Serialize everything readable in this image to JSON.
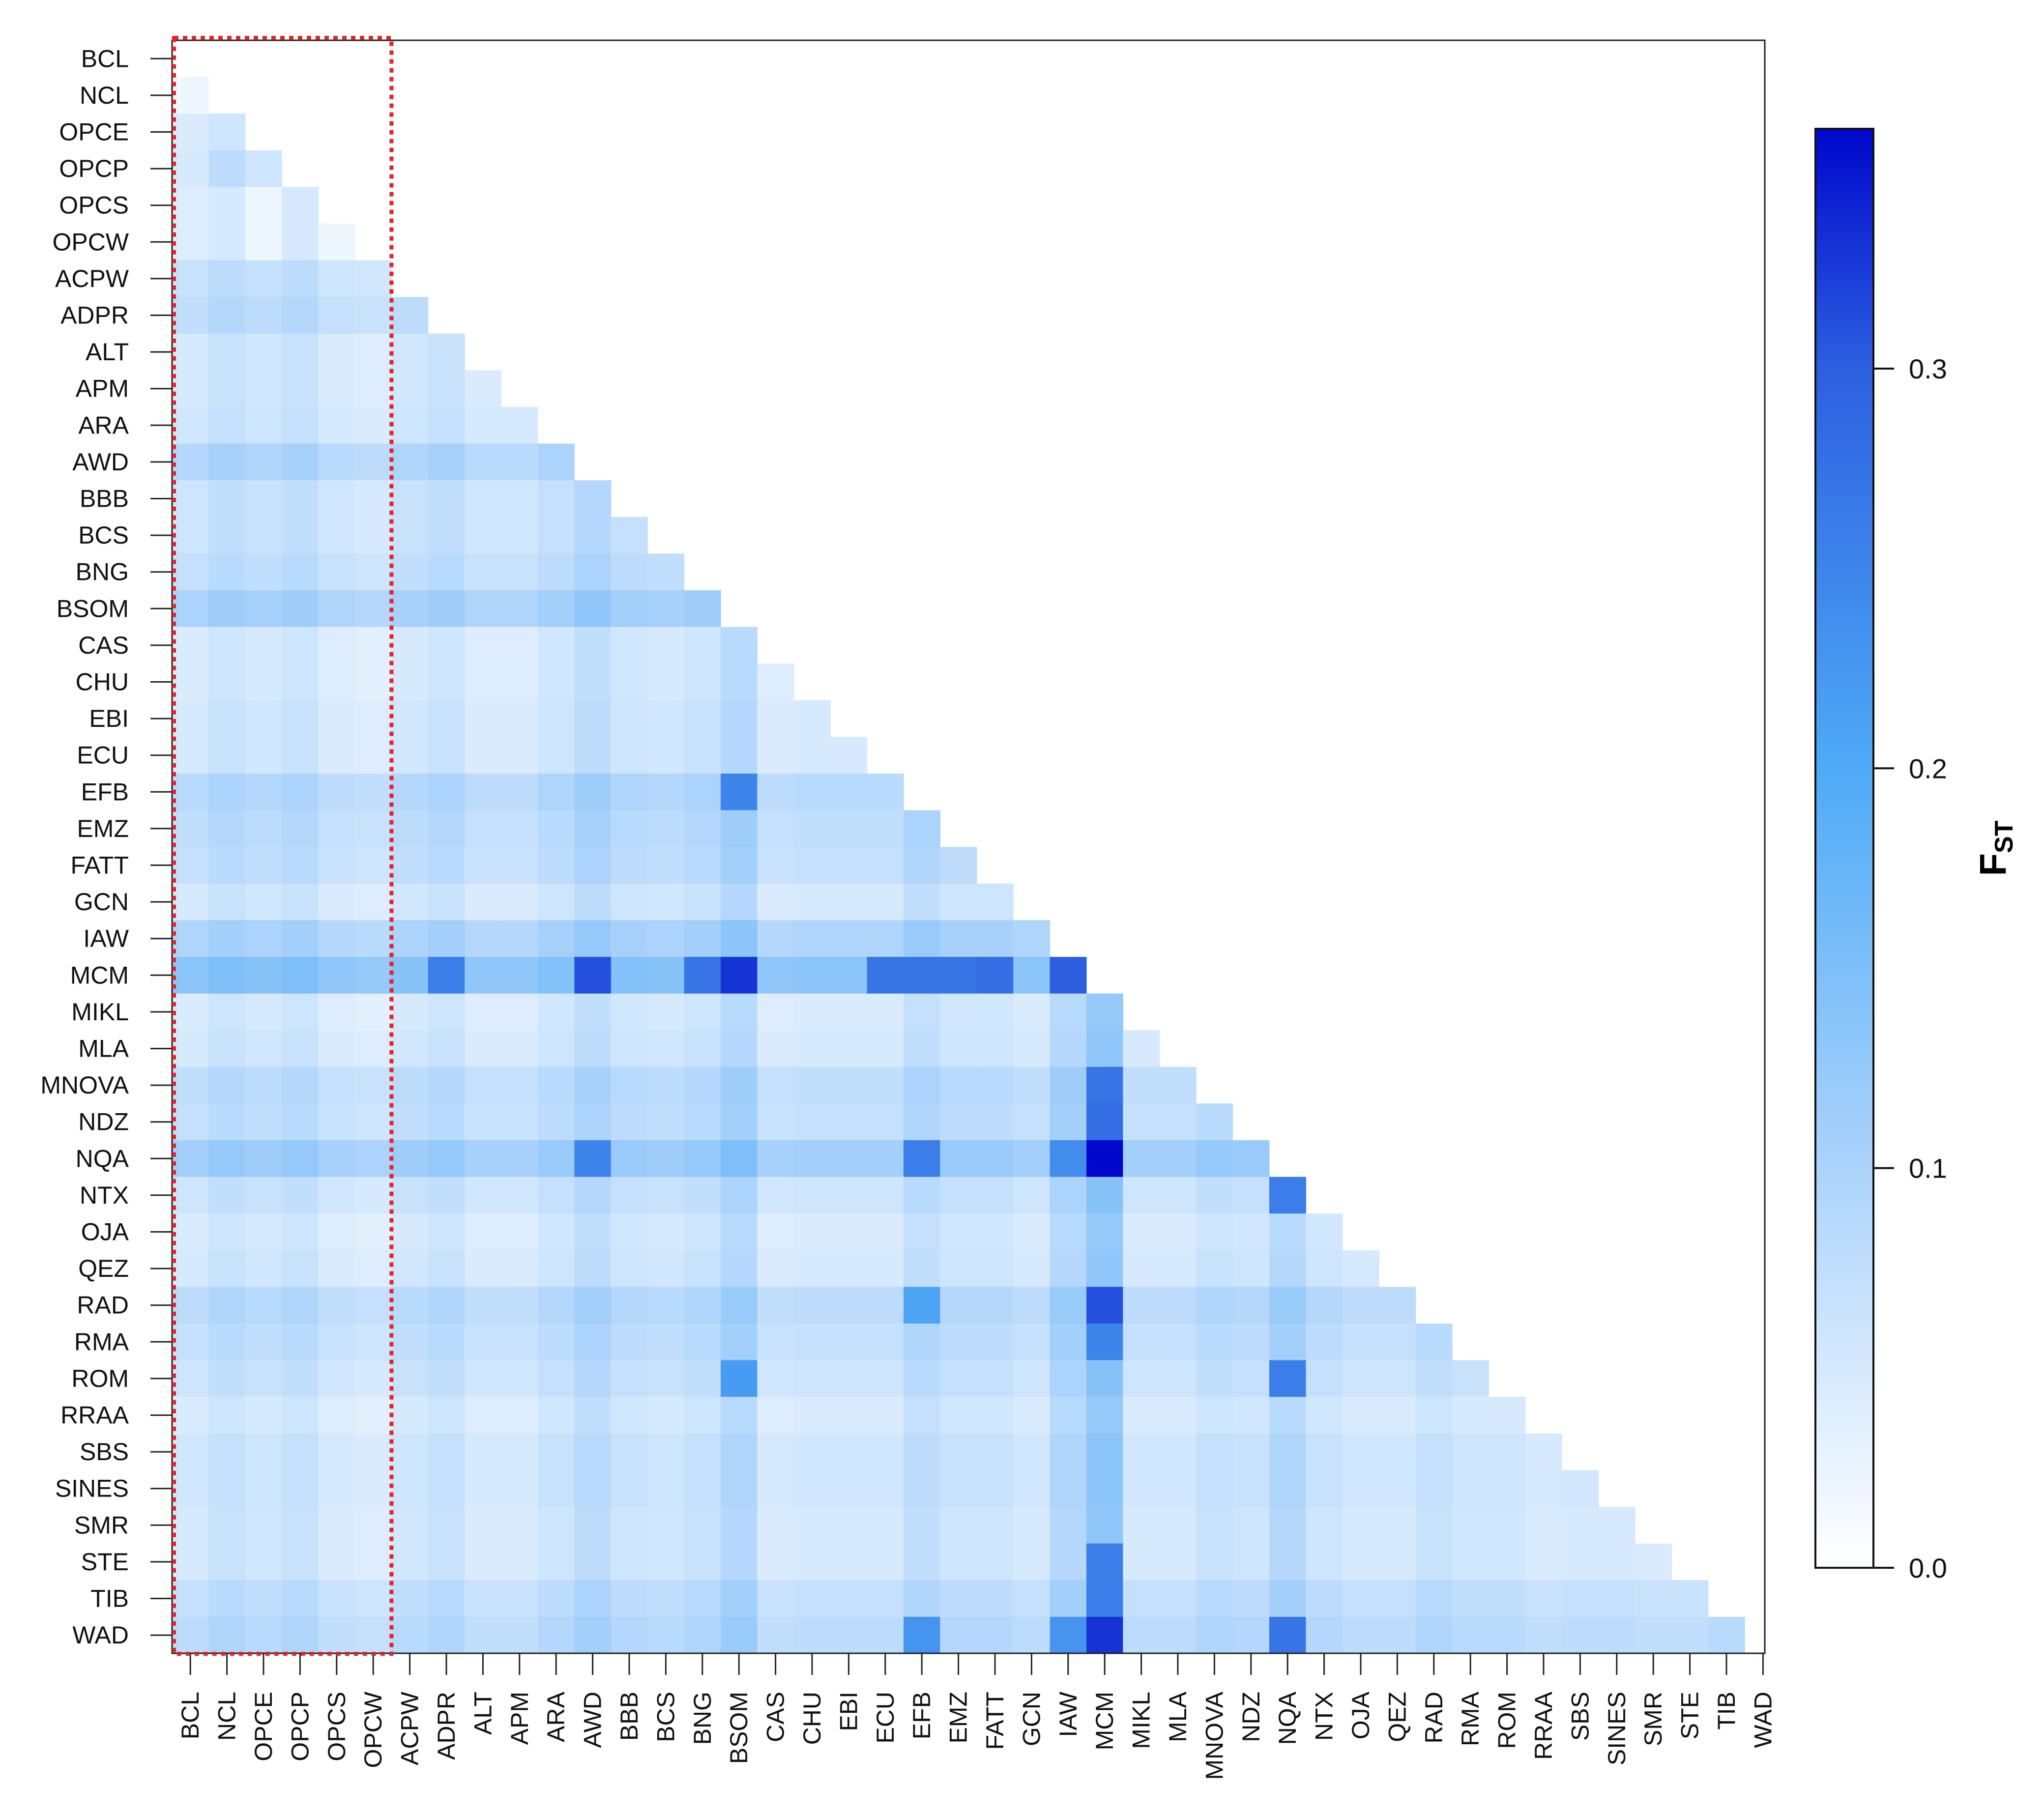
{
  "chart_data": {
    "type": "heatmap",
    "title": "",
    "xlabel": "",
    "ylabel": "",
    "populations": [
      "BCL",
      "NCL",
      "OPCE",
      "OPCP",
      "OPCS",
      "OPCW",
      "ACPW",
      "ADPR",
      "ALT",
      "APM",
      "ARA",
      "AWD",
      "BBB",
      "BCS",
      "BNG",
      "BSOM",
      "CAS",
      "CHU",
      "EBI",
      "ECU",
      "EFB",
      "EMZ",
      "FATT",
      "GCN",
      "IAW",
      "MCM",
      "MIKL",
      "MLA",
      "MNOVA",
      "NDZ",
      "NQA",
      "NTX",
      "OJA",
      "QEZ",
      "RAD",
      "RMA",
      "ROM",
      "RRAA",
      "SBS",
      "SINES",
      "SMR",
      "STE",
      "TIB",
      "WAD"
    ],
    "highlight": {
      "populations": [
        "BCL",
        "NCL",
        "OPCE",
        "OPCP",
        "OPCS",
        "OPCW"
      ],
      "color": "#e0242a",
      "style": "dotted"
    },
    "colorbar": {
      "title_main": "F",
      "title_sub": "ST",
      "ticks": [
        0.0,
        0.1,
        0.2,
        0.3
      ],
      "tick_labels": [
        "0.0",
        "0.1",
        "0.2",
        "0.3"
      ],
      "range": [
        0,
        0.36
      ],
      "stops": [
        {
          "v": 0.0,
          "color": "#ffffff"
        },
        {
          "v": 0.1,
          "color": "#acd3fb"
        },
        {
          "v": 0.2,
          "color": "#4faaf6"
        },
        {
          "v": 0.3,
          "color": "#2d5fe0"
        },
        {
          "v": 0.36,
          "color": "#0007cc"
        }
      ]
    },
    "base_row": [
      0,
      0,
      0.05,
      0.06,
      0.04,
      0.04,
      0.09,
      0.11,
      0.06,
      0.06,
      0.07,
      0.14,
      0.08,
      0.08,
      0.1,
      0.16,
      0.05,
      0.05,
      0.06,
      0.06,
      0.13,
      0.11,
      0.1,
      0.06,
      0.15,
      0.23,
      0.05,
      0.06,
      0.11,
      0.1,
      0.18,
      0.08,
      0.05,
      0.06,
      0.12,
      0.1,
      0.08,
      0.05,
      0.07,
      0.07,
      0.06,
      0.06,
      0.1,
      0.12
    ],
    "base_col": [
      0.04,
      0.07,
      0.05,
      0.07,
      0.03,
      0.02,
      0.05,
      0.07,
      0.03,
      0.03,
      0.06,
      0.1,
      0.06,
      0.05,
      0.07,
      0.12,
      0.03,
      0.04,
      0.04,
      0.04,
      0.09,
      0.06,
      0.06,
      0.04,
      0.12,
      0.2,
      0.04,
      0.04,
      0.07,
      0.06,
      0.12,
      0.06,
      0.04,
      0.04,
      0.07,
      0.05,
      0.05,
      0.03,
      0.04,
      0.04,
      0.03,
      0.03,
      0.05,
      0.06
    ],
    "cells": [
      [
        "MCM",
        "AWD",
        0.31
      ],
      [
        "MCM",
        "BSOM",
        0.33
      ],
      [
        "MCM",
        "BNG",
        0.27
      ],
      [
        "MCM",
        "ADPR",
        0.26
      ],
      [
        "MCM",
        "ECU",
        0.27
      ],
      [
        "MCM",
        "EFB",
        0.27
      ],
      [
        "MCM",
        "EMZ",
        0.27
      ],
      [
        "MCM",
        "FATT",
        0.28
      ],
      [
        "MCM",
        "IAW",
        0.3
      ],
      [
        "NQA",
        "MCM",
        0.36
      ],
      [
        "RAD",
        "MCM",
        0.31
      ],
      [
        "WAD",
        "MCM",
        0.33
      ],
      [
        "NTX",
        "NQA",
        0.26
      ],
      [
        "WAD",
        "NQA",
        0.27
      ],
      [
        "ROM",
        "NQA",
        0.26
      ],
      [
        "MNOVA",
        "MCM",
        0.27
      ],
      [
        "NDZ",
        "MCM",
        0.28
      ],
      [
        "STE",
        "MCM",
        0.26
      ],
      [
        "TIB",
        "MCM",
        0.26
      ],
      [
        "RMA",
        "MCM",
        0.25
      ],
      [
        "EFB",
        "BSOM",
        0.25
      ],
      [
        "NQA",
        "EFB",
        0.26
      ],
      [
        "NQA",
        "AWD",
        0.25
      ],
      [
        "NQA",
        "IAW",
        0.24
      ],
      [
        "WAD",
        "EFB",
        0.23
      ],
      [
        "WAD",
        "IAW",
        0.23
      ],
      [
        "ROM",
        "BSOM",
        0.22
      ],
      [
        "RAD",
        "EFB",
        0.21
      ],
      [
        "OPCE",
        "NCL",
        0.06
      ],
      [
        "OPCP",
        "NCL",
        0.08
      ],
      [
        "OPCP",
        "OPCE",
        0.06
      ],
      [
        "OPCS",
        "NCL",
        0.05
      ],
      [
        "OPCS",
        "OPCE",
        0.02
      ],
      [
        "OPCS",
        "OPCP",
        0.05
      ],
      [
        "OPCW",
        "NCL",
        0.05
      ],
      [
        "OPCW",
        "OPCE",
        0.02
      ],
      [
        "OPCW",
        "OPCP",
        0.05
      ],
      [
        "OPCW",
        "OPCS",
        0.02
      ]
    ]
  }
}
